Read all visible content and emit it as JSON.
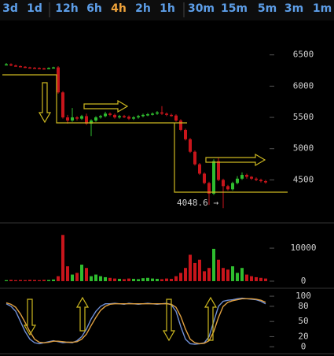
{
  "toolbar": {
    "groups": [
      [
        "3d",
        "1d"
      ],
      [
        "12h",
        "6h",
        "4h",
        "2h",
        "1h"
      ],
      [
        "30m",
        "15m",
        "5m",
        "3m",
        "1m"
      ]
    ],
    "active": [
      1,
      2
    ]
  },
  "chart_data": [
    {
      "type": "candlestick",
      "up_color": "#2fbd2f",
      "down_color": "#c8151b",
      "open": [
        6340,
        6350,
        6330,
        6320,
        6310,
        6300,
        6295,
        6290,
        6285,
        6280,
        6290,
        6300,
        5900,
        5500,
        5450,
        5500,
        5480,
        5520,
        5400,
        5450,
        5500,
        5520,
        5560,
        5540,
        5500,
        5520,
        5510,
        5480,
        5500,
        5520,
        5540,
        5550,
        5560,
        5580,
        5560,
        5540,
        5530,
        5450,
        5300,
        5150,
        4950,
        4750,
        4600,
        4450,
        4280,
        4800,
        4500,
        4400,
        4350,
        4450,
        4520,
        4580,
        4550,
        4520,
        4500,
        4480
      ],
      "high": [
        6370,
        6365,
        6345,
        6330,
        6320,
        6310,
        6305,
        6300,
        6295,
        6300,
        6310,
        6320,
        5920,
        5540,
        5650,
        5520,
        5540,
        5560,
        5470,
        5520,
        5540,
        5590,
        5580,
        5560,
        5540,
        5540,
        5530,
        5520,
        5540,
        5560,
        5570,
        5580,
        5600,
        5680,
        5580,
        5560,
        5550,
        5470,
        5320,
        5170,
        4970,
        4770,
        4620,
        4470,
        4830,
        4850,
        4520,
        4420,
        4470,
        4560,
        4620,
        4600,
        4560,
        4540,
        4520,
        4500
      ],
      "low": [
        6330,
        6320,
        6310,
        6300,
        6290,
        6280,
        6275,
        6270,
        6265,
        6270,
        6280,
        5880,
        5480,
        5400,
        5430,
        5450,
        5460,
        5380,
        5200,
        5430,
        5480,
        5500,
        5520,
        5480,
        5480,
        5490,
        5460,
        5460,
        5480,
        5500,
        5520,
        5530,
        5540,
        5540,
        5520,
        5510,
        5430,
        5280,
        5130,
        4930,
        4730,
        4580,
        4430,
        4100,
        4260,
        4480,
        4048.6,
        4330,
        4330,
        4430,
        4500,
        4520,
        4500,
        4480,
        4460,
        4440
      ],
      "close": [
        6350,
        6330,
        6320,
        6310,
        6300,
        6295,
        6290,
        6285,
        6280,
        6290,
        6300,
        5900,
        5500,
        5450,
        5500,
        5480,
        5520,
        5400,
        5450,
        5500,
        5520,
        5560,
        5540,
        5500,
        5520,
        5510,
        5480,
        5500,
        5520,
        5540,
        5550,
        5560,
        5580,
        5560,
        5540,
        5530,
        5450,
        5300,
        5150,
        4950,
        4750,
        4600,
        4450,
        4280,
        4800,
        4500,
        4400,
        4350,
        4450,
        4520,
        4580,
        4550,
        4520,
        4500,
        4480,
        4460
      ],
      "ylim": [
        3850,
        7000
      ],
      "yticks": [
        4500,
        5000,
        5500,
        6000,
        6500
      ],
      "low_marker": {
        "value": 4048.6,
        "label": "4048.6 →"
      }
    },
    {
      "type": "bar",
      "values": [
        300,
        400,
        300,
        350,
        300,
        400,
        350,
        300,
        400,
        350,
        500,
        1500,
        14000,
        4500,
        2000,
        2500,
        5000,
        4000,
        1500,
        2000,
        1500,
        1200,
        1000,
        800,
        700,
        600,
        800,
        700,
        600,
        900,
        1000,
        800,
        700,
        600,
        800,
        700,
        1500,
        2500,
        4000,
        8000,
        5500,
        6500,
        3000,
        4000,
        9800,
        6500,
        4000,
        3500,
        4500,
        2500,
        4000,
        2000,
        1500,
        1200,
        1000,
        800
      ],
      "ylim": [
        -1200,
        16700
      ],
      "yticks": [
        0,
        10000
      ]
    },
    {
      "type": "line",
      "series": [
        {
          "color": "#6f8fd6",
          "values": [
            85,
            80,
            70,
            50,
            30,
            15,
            8,
            6,
            8,
            10,
            12,
            10,
            8,
            9,
            8,
            12,
            20,
            35,
            55,
            70,
            80,
            85,
            85,
            86,
            85,
            84,
            86,
            85,
            84,
            85,
            86,
            85,
            84,
            85,
            86,
            83,
            70,
            40,
            15,
            6,
            5,
            6,
            8,
            20,
            50,
            80,
            90,
            92,
            93,
            95,
            96,
            95,
            94,
            93,
            90,
            85
          ]
        },
        {
          "color": "#e0a040",
          "values": [
            87,
            84,
            78,
            65,
            48,
            30,
            15,
            9,
            8,
            9,
            11,
            11,
            10,
            9,
            9,
            10,
            15,
            25,
            42,
            58,
            72,
            80,
            84,
            85,
            85,
            85,
            85,
            85,
            85,
            85,
            85,
            85,
            85,
            85,
            85,
            84,
            78,
            60,
            35,
            15,
            8,
            6,
            7,
            12,
            30,
            58,
            80,
            88,
            91,
            93,
            95,
            95,
            95,
            94,
            92,
            88
          ]
        }
      ],
      "ylim": [
        -12,
        111
      ],
      "yticks": [
        0,
        20,
        50,
        80,
        100
      ]
    }
  ]
}
